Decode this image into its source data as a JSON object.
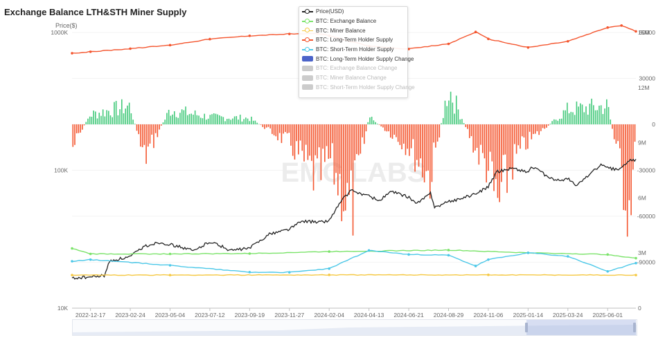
{
  "page": {
    "title": "Exchange Balance LTH&STH Miner Supply",
    "price_unit": "Price($)",
    "watermark": "EMC LABS"
  },
  "legend": [
    {
      "label": "Price(USD)",
      "color": "#222222",
      "kind": "line",
      "active": true
    },
    {
      "label": "BTC: Exchange Balance",
      "color": "#7be36a",
      "kind": "line",
      "active": true
    },
    {
      "label": "BTC: Miner Balance",
      "color": "#f5c842",
      "kind": "line",
      "active": true
    },
    {
      "label": "BTC: Long-Term Holder Supply",
      "color": "#f4552e",
      "kind": "line",
      "active": true
    },
    {
      "label": "BTC: Short-Term Holder Supply",
      "color": "#4cc8e8",
      "kind": "line",
      "active": true
    },
    {
      "label": "BTC: Long-Term Holder Supply Change",
      "color": "#4b63c9",
      "kind": "box",
      "active": true
    },
    {
      "label": "BTC: Exchange Balance Change",
      "color": "#cccccc",
      "kind": "box",
      "active": false
    },
    {
      "label": "BTC: Miner Balance Change",
      "color": "#cccccc",
      "kind": "box",
      "active": false
    },
    {
      "label": "BTC: Short-Term Holder Supply Change",
      "color": "#cccccc",
      "kind": "box",
      "active": false
    }
  ],
  "chart_data": {
    "type": "line",
    "title": "Exchange Balance LTH&STH Miner Supply",
    "x_axis": {
      "tick_labels": [
        "2022-12-17",
        "2023-02-24",
        "2023-05-04",
        "2023-07-12",
        "2023-09-19",
        "2023-11-27",
        "2024-02-04",
        "2024-04-13",
        "2024-06-21",
        "2024-08-29",
        "2024-11-06",
        "2025-01-14",
        "2025-03-24",
        "2025-06-01"
      ],
      "range": [
        "2022-11-15",
        "2025-07-20"
      ]
    },
    "y_axes": {
      "price": {
        "label": "Price($)",
        "scale": "log",
        "range": [
          10000,
          1000000
        ],
        "tick_labels": [
          "10K",
          "100K",
          "1000K"
        ]
      },
      "supply": {
        "scale": "linear",
        "range": [
          0,
          15000000
        ],
        "tick_labels": [
          "0",
          "3M",
          "6M",
          "9M",
          "12M",
          "15M"
        ]
      },
      "change": {
        "scale": "linear",
        "range": [
          -120000,
          60000
        ],
        "tick_labels": [
          "-90000",
          "-60000",
          "-30000",
          "0",
          "30000",
          "60000"
        ]
      }
    },
    "series": [
      {
        "name": "Price(USD)",
        "axis": "price",
        "color": "#222222",
        "x": [
          "2022-11-15",
          "2022-12-17",
          "2023-01-10",
          "2023-01-20",
          "2023-02-24",
          "2023-03-20",
          "2023-04-14",
          "2023-05-04",
          "2023-06-15",
          "2023-07-12",
          "2023-08-17",
          "2023-09-19",
          "2023-10-24",
          "2023-11-27",
          "2023-12-20",
          "2024-01-15",
          "2024-02-04",
          "2024-02-28",
          "2024-03-13",
          "2024-04-13",
          "2024-05-01",
          "2024-05-21",
          "2024-06-21",
          "2024-07-05",
          "2024-07-29",
          "2024-08-05",
          "2024-08-29",
          "2024-10-15",
          "2024-11-06",
          "2024-11-22",
          "2024-12-17",
          "2025-01-14",
          "2025-01-20",
          "2025-02-28",
          "2025-03-24",
          "2025-04-08",
          "2025-05-21",
          "2025-06-01",
          "2025-06-20",
          "2025-07-14",
          "2025-07-20"
        ],
        "values": [
          16500,
          16800,
          17200,
          22000,
          23500,
          28000,
          30000,
          29000,
          26000,
          30500,
          26200,
          27200,
          34500,
          37500,
          43000,
          42000,
          43000,
          62000,
          71000,
          65000,
          60000,
          70000,
          64000,
          57000,
          68000,
          54000,
          59000,
          67000,
          76000,
          98000,
          104000,
          97000,
          106000,
          84000,
          87000,
          77000,
          109000,
          104000,
          101000,
          121000,
          118000
        ]
      },
      {
        "name": "BTC: Exchange Balance",
        "axis": "supply",
        "color": "#7be36a",
        "x": [
          "2022-11-15",
          "2022-12-17",
          "2023-05-04",
          "2023-09-19",
          "2024-02-04",
          "2024-08-29",
          "2025-01-14",
          "2025-06-01",
          "2025-07-20"
        ],
        "values": [
          3250000,
          2950000,
          2950000,
          2970000,
          3080000,
          3160000,
          3010000,
          2920000,
          2720000
        ]
      },
      {
        "name": "BTC: Miner Balance",
        "axis": "supply",
        "color": "#f5c842",
        "x": [
          "2022-11-15",
          "2023-05-04",
          "2024-02-04",
          "2024-11-06",
          "2025-07-20"
        ],
        "values": [
          1800000,
          1800000,
          1810000,
          1810000,
          1800000
        ]
      },
      {
        "name": "BTC: Long-Term Holder Supply",
        "axis": "supply",
        "color": "#f4552e",
        "x": [
          "2022-11-15",
          "2022-12-17",
          "2023-02-24",
          "2023-05-04",
          "2023-07-12",
          "2023-09-19",
          "2023-11-27",
          "2024-01-15",
          "2024-02-04",
          "2024-04-13",
          "2024-06-21",
          "2024-08-29",
          "2024-10-15",
          "2024-11-06",
          "2025-01-14",
          "2025-03-24",
          "2025-06-01",
          "2025-06-25",
          "2025-07-20"
        ],
        "values": [
          13870000,
          13950000,
          14120000,
          14310000,
          14640000,
          14820000,
          14920000,
          14940000,
          14820000,
          14250000,
          14100000,
          14380000,
          15030000,
          14650000,
          14180000,
          14520000,
          15270000,
          15380000,
          15060000
        ]
      },
      {
        "name": "BTC: Short-Term Holder Supply",
        "axis": "supply",
        "color": "#4cc8e8",
        "x": [
          "2022-11-15",
          "2022-12-17",
          "2023-05-04",
          "2023-09-19",
          "2023-11-27",
          "2024-02-04",
          "2024-04-13",
          "2024-06-21",
          "2024-08-29",
          "2024-10-15",
          "2024-11-06",
          "2025-01-14",
          "2025-03-24",
          "2025-06-01",
          "2025-07-20"
        ],
        "values": [
          2550000,
          2640000,
          2330000,
          1960000,
          1950000,
          2150000,
          3140000,
          2920000,
          2880000,
          2290000,
          2640000,
          3010000,
          2820000,
          2000000,
          2450000
        ]
      },
      {
        "name": "BTC: Long-Term Holder Supply Change",
        "axis": "change",
        "type": "bar",
        "color_positive": "#42c97a",
        "color_negative": "#f4552e",
        "x": [
          "2022-11-15",
          "2022-12-17",
          "2023-02-24",
          "2023-03-20",
          "2023-05-04",
          "2023-07-12",
          "2023-09-19",
          "2023-11-27",
          "2024-01-15",
          "2024-02-04",
          "2024-03-13",
          "2024-04-13",
          "2024-06-21",
          "2024-07-29",
          "2024-08-29",
          "2024-10-15",
          "2024-11-06",
          "2024-11-22",
          "2024-12-17",
          "2025-01-14",
          "2025-03-24",
          "2025-06-01",
          "2025-07-08",
          "2025-07-20"
        ],
        "values": [
          -20000,
          8000,
          15000,
          -28000,
          12000,
          6000,
          5000,
          -15000,
          -45000,
          -28000,
          -72000,
          6000,
          -18000,
          -43000,
          30000,
          -20000,
          -35000,
          -68000,
          -32000,
          -14000,
          12000,
          15000,
          -68000,
          -20000
        ]
      }
    ],
    "grid": true
  },
  "range_slider": {
    "start_fraction": 0.805,
    "end_fraction": 1.0
  }
}
